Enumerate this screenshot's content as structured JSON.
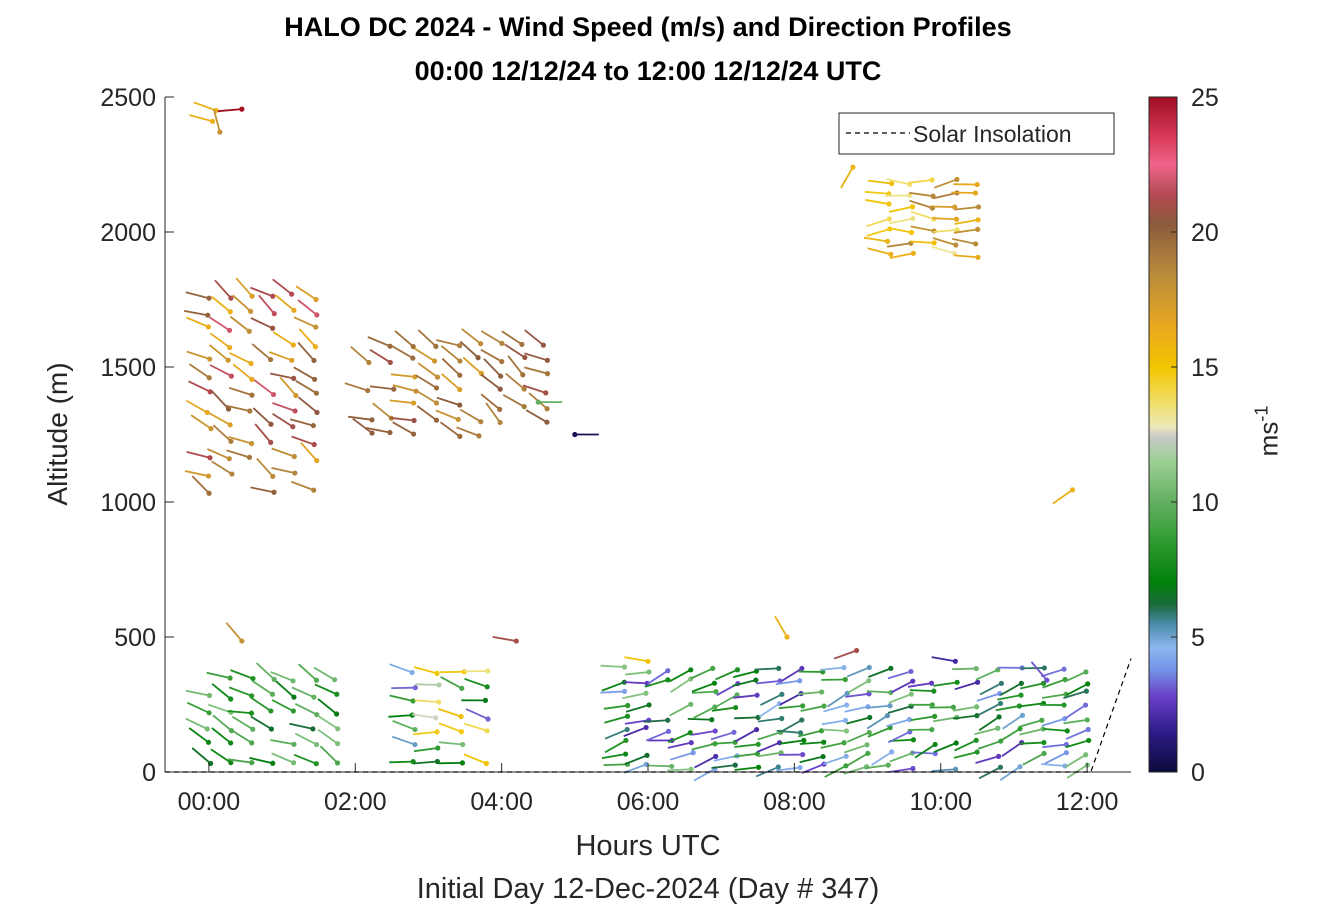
{
  "chart_data": {
    "type": "wind-barb profile (scatter)",
    "title": "HALO DC 2024 - Wind Speed (m/s) and Direction Profiles",
    "subtitle": "00:00 12/12/24 to 12:00 12/12/24  UTC",
    "xlabel": "Hours UTC",
    "ylabel": "Altitude (m)",
    "footnote": "Initial Day 12-Dec-2024 (Day # 347)",
    "xlim": [
      -0.6,
      12.6
    ],
    "ylim": [
      0,
      2500
    ],
    "x_ticks": [
      0,
      2,
      4,
      6,
      8,
      10,
      12
    ],
    "x_tick_labels": [
      "00:00",
      "02:00",
      "04:00",
      "06:00",
      "08:00",
      "10:00",
      "12:00"
    ],
    "y_ticks": [
      0,
      500,
      1000,
      1500,
      2000,
      2500
    ],
    "y_tick_labels": [
      "0",
      "500",
      "1000",
      "1500",
      "2000",
      "2500"
    ],
    "legend": {
      "entry": "Solar Insolation",
      "position": "top-right",
      "style": "dashed black line"
    },
    "solar_insolation": {
      "x": [
        -0.6,
        12.05,
        12.6
      ],
      "y": [
        0,
        0,
        420
      ]
    },
    "colorbar": {
      "label": "ms",
      "label_exponent": "-1",
      "ticks": [
        0,
        5,
        10,
        15,
        20,
        25
      ],
      "tick_labels": [
        "0",
        "5",
        "10",
        "15",
        "20",
        "25"
      ],
      "range": [
        0,
        25
      ],
      "stops": [
        {
          "v": 0,
          "c": "#0b0b3b"
        },
        {
          "v": 1.5,
          "c": "#2f1c8a"
        },
        {
          "v": 2.8,
          "c": "#6b3fc8"
        },
        {
          "v": 3.8,
          "c": "#7595e8"
        },
        {
          "v": 4.6,
          "c": "#8cb6ee"
        },
        {
          "v": 5.5,
          "c": "#4a8aa8"
        },
        {
          "v": 6.2,
          "c": "#1a6a3a"
        },
        {
          "v": 7,
          "c": "#00800a"
        },
        {
          "v": 8.5,
          "c": "#2f9a2f"
        },
        {
          "v": 10,
          "c": "#62b062"
        },
        {
          "v": 11.5,
          "c": "#9ccf94"
        },
        {
          "v": 12.4,
          "c": "#c8c8c8"
        },
        {
          "v": 12.8,
          "c": "#ede8b8"
        },
        {
          "v": 13.6,
          "c": "#f0e070"
        },
        {
          "v": 15,
          "c": "#f2c500"
        },
        {
          "v": 16.5,
          "c": "#e8a820"
        },
        {
          "v": 18.5,
          "c": "#b88a3c"
        },
        {
          "v": 20.3,
          "c": "#8b5a3c"
        },
        {
          "v": 21.3,
          "c": "#b04a50"
        },
        {
          "v": 22.5,
          "c": "#f0648a"
        },
        {
          "v": 23.5,
          "c": "#d83a5a"
        },
        {
          "v": 25,
          "c": "#a00e20"
        }
      ]
    },
    "barb_fields": [
      {
        "t0": 0,
        "t1": 1.45,
        "dt": 0.29,
        "a0": 1040,
        "a1": 1760,
        "da": 60,
        "dir": 300,
        "speed": [
          16,
          22
        ]
      },
      {
        "t0": 2.2,
        "t1": 3.7,
        "dt": 0.3,
        "a0": 1250,
        "a1": 1630,
        "da": 55,
        "dir": 295,
        "speed": [
          17,
          21
        ]
      },
      {
        "t0": 4.0,
        "t1": 4.6,
        "dt": 0.3,
        "a0": 1290,
        "a1": 1620,
        "da": 60,
        "dir": 305,
        "speed": [
          18,
          21
        ]
      },
      {
        "t0": 9.3,
        "t1": 10.5,
        "dt": 0.3,
        "a0": 1915,
        "a1": 2185,
        "da": 45,
        "dir": 270,
        "speed": [
          13,
          19
        ]
      },
      {
        "t0": 0,
        "t1": 1.75,
        "dt": 0.29,
        "a0": 40,
        "a1": 360,
        "da": 60,
        "dir": 295,
        "speed": [
          6,
          11
        ]
      },
      {
        "t0": 2.8,
        "t1": 4.1,
        "dt": 0.33,
        "a0": 40,
        "a1": 380,
        "da": 55,
        "dir": 280,
        "speed": [
          3,
          16
        ]
      },
      {
        "t0": 5.7,
        "t1": 12.05,
        "dt": 0.3,
        "a0": 20,
        "a1": 420,
        "da": 45,
        "dir": 255,
        "speed": [
          2,
          11
        ]
      }
    ],
    "single_barbs": [
      {
        "t": 0.05,
        "alt": 2410,
        "dir": 285,
        "speed": 16
      },
      {
        "t": 0.1,
        "alt": 2450,
        "dir": 290,
        "speed": 16
      },
      {
        "t": 0.45,
        "alt": 2455,
        "dir": 265,
        "speed": 25
      },
      {
        "t": 0.15,
        "alt": 2370,
        "dir": 345,
        "speed": 18
      },
      {
        "t": 8.8,
        "alt": 2240,
        "dir": 210,
        "speed": 16
      },
      {
        "t": 11.8,
        "alt": 1045,
        "dir": 235,
        "speed": 16
      },
      {
        "t": 5.0,
        "alt": 1250,
        "dir": 90,
        "speed": 0.5
      },
      {
        "t": 4.5,
        "alt": 1370,
        "dir": 90,
        "speed": 10
      },
      {
        "t": 0.45,
        "alt": 485,
        "dir": 320,
        "speed": 18
      },
      {
        "t": 4.2,
        "alt": 485,
        "dir": 280,
        "speed": 21
      },
      {
        "t": 6.0,
        "alt": 410,
        "dir": 280,
        "speed": 15
      },
      {
        "t": 7.9,
        "alt": 500,
        "dir": 330,
        "speed": 16
      },
      {
        "t": 8.85,
        "alt": 450,
        "dir": 250,
        "speed": 21
      },
      {
        "t": 10.2,
        "alt": 410,
        "dir": 280,
        "speed": 2
      },
      {
        "t": 11.45,
        "alt": 340,
        "dir": 320,
        "speed": 3
      }
    ]
  }
}
